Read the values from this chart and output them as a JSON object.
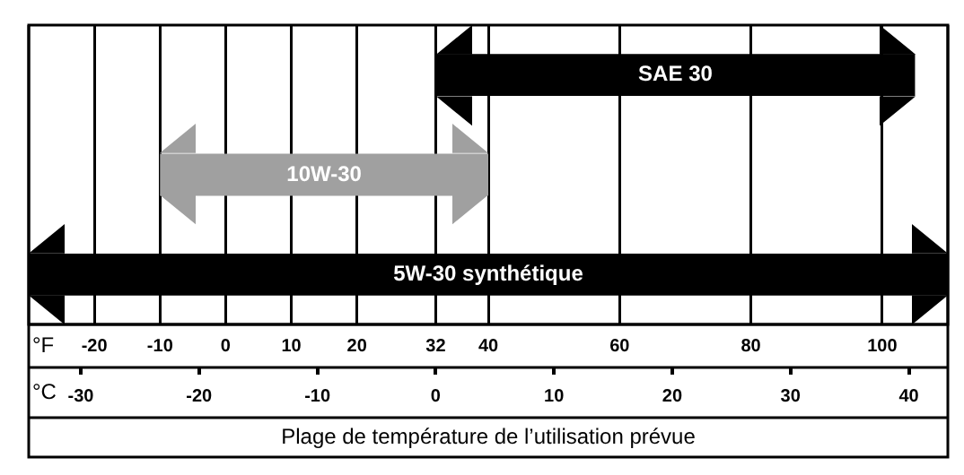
{
  "chart_data": {
    "type": "bar",
    "orientation": "horizontal",
    "categories": [
      "SAE 30",
      "10W-30",
      "5W-30 synthétique"
    ],
    "base": [
      32,
      -10,
      -30
    ],
    "values": [
      73,
      50,
      140
    ],
    "colors": [
      "#000000",
      "#a0a0a0",
      "#000000"
    ],
    "xlabel": "°F",
    "x2label": "°C",
    "xlim": [
      -30,
      110
    ],
    "xticks": [
      -20,
      -10,
      0,
      10,
      20,
      32,
      40,
      60,
      80,
      100
    ],
    "x2lim": [
      -34.4,
      43.3
    ],
    "x2ticks": [
      -30,
      -20,
      -10,
      0,
      10,
      20,
      30,
      40
    ],
    "grid": "x",
    "tick_labels": "x",
    "legend": false,
    "annotations": [
      "Plage de température de l’utilisation prévue"
    ]
  }
}
